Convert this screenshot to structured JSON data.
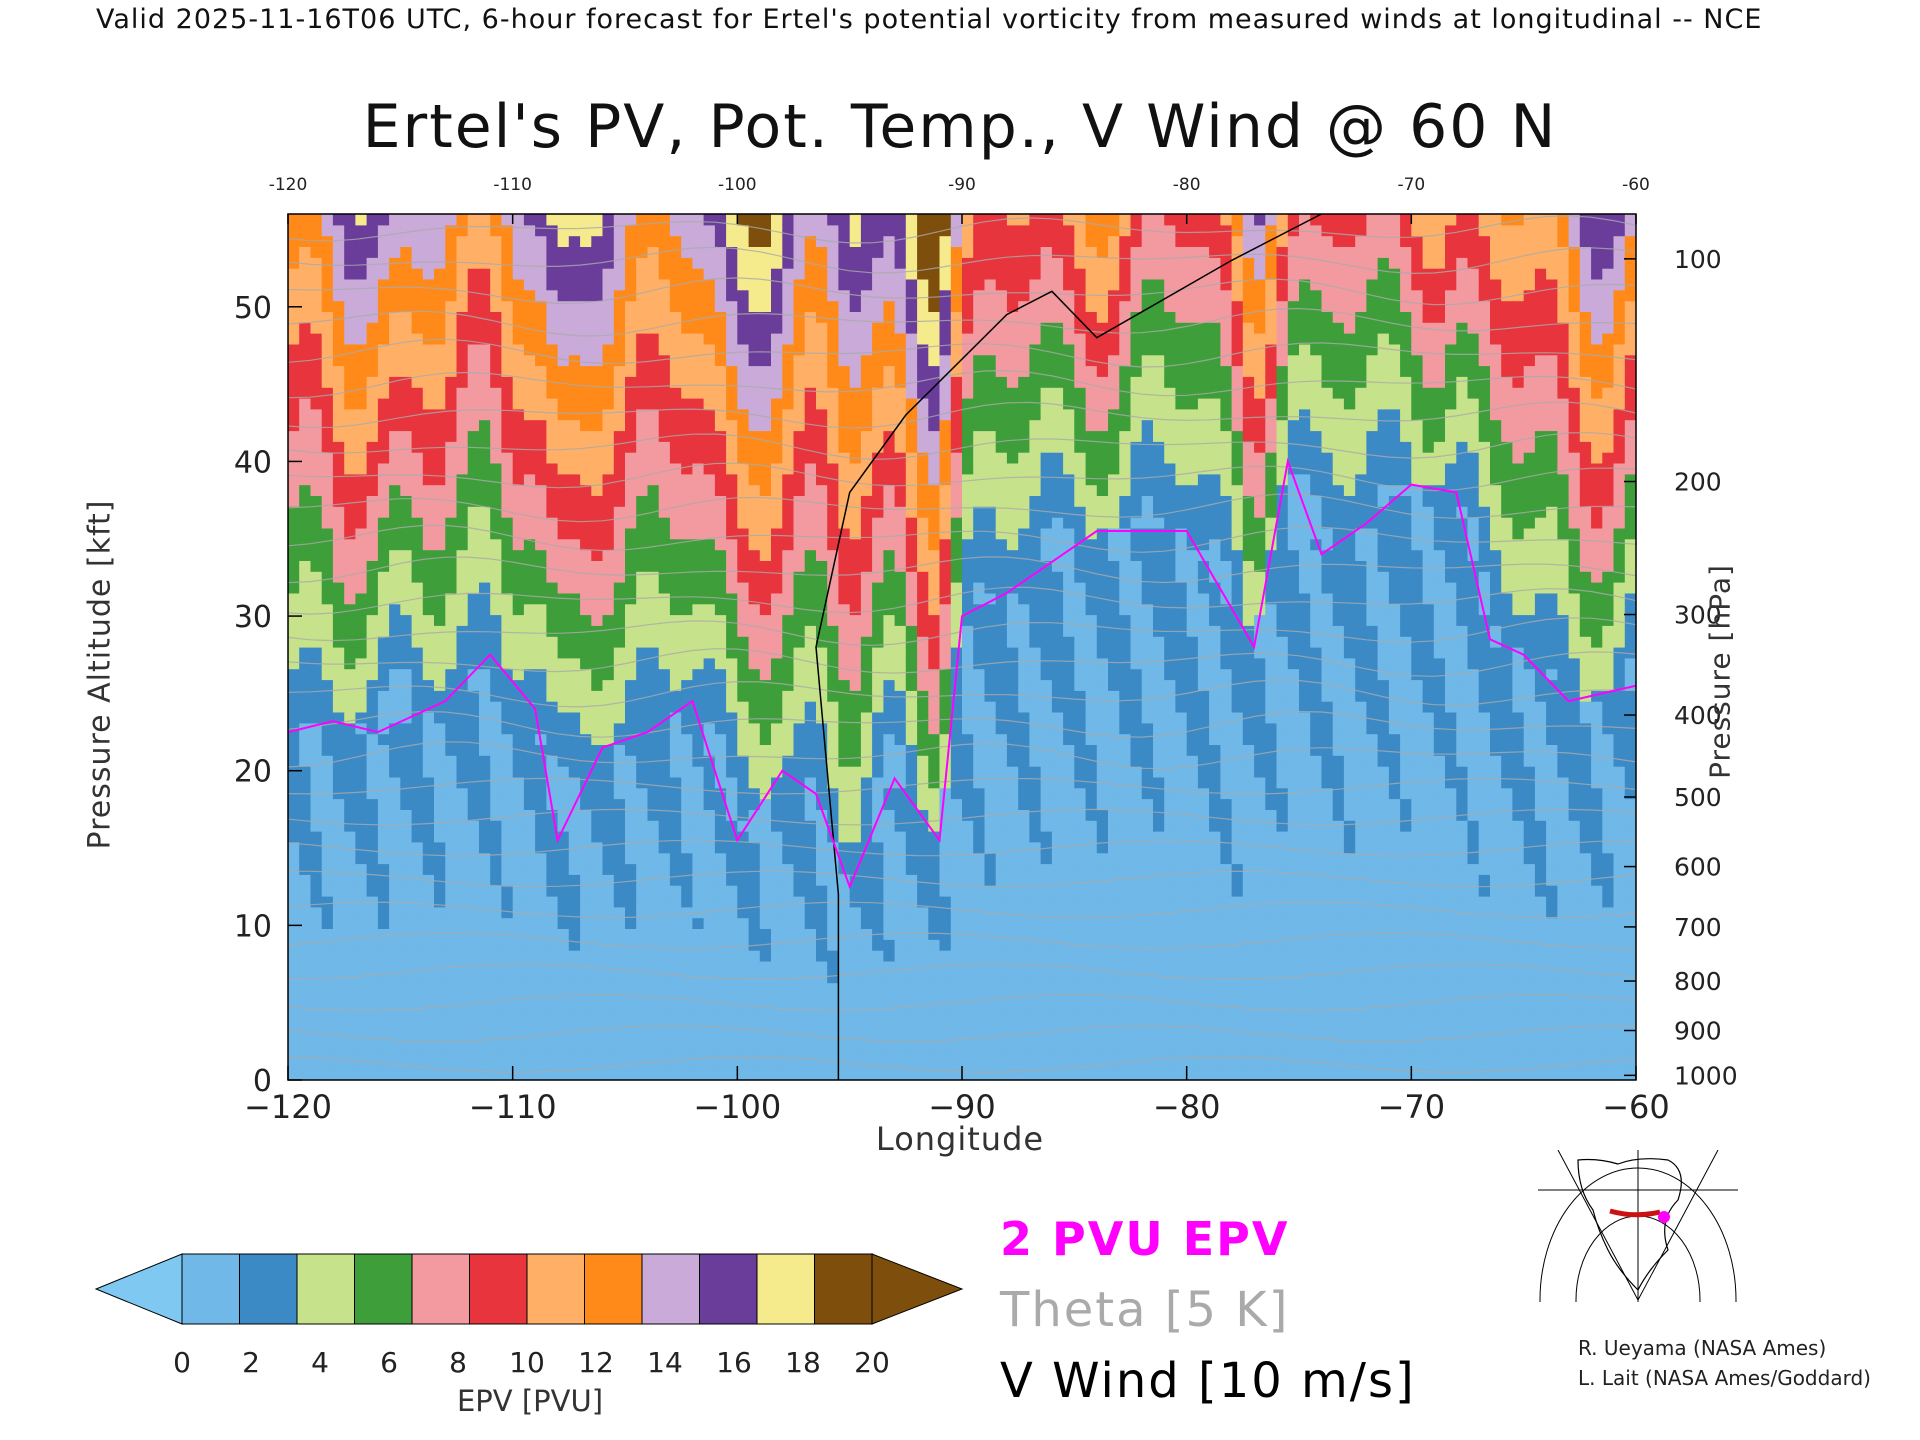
{
  "header": {
    "valid_line": "Valid 2025-11-16T06 UTC, 6-hour forecast for Ertel's potential vorticity from measured winds at longitudinal -- NCE"
  },
  "chart_data": {
    "type": "heatmap",
    "title": "Ertel's PV, Pot. Temp., V Wind @ 60 N",
    "xlabel": "Longitude",
    "ylabel": "Pressure Altitude [kft]",
    "ylabel_right": "Pressure [hPa]",
    "xlim": [
      -120,
      -60
    ],
    "ylim": [
      0,
      56
    ],
    "x_ticks": [
      -120,
      -110,
      -100,
      -90,
      -80,
      -70,
      -60
    ],
    "x_ticks_top": [
      -120,
      -110,
      -100,
      -90,
      -80,
      -70,
      -60
    ],
    "y_ticks": [
      0,
      10,
      20,
      30,
      40,
      50
    ],
    "pressure_ticks": [
      {
        "label": "100",
        "kft": 53.1
      },
      {
        "label": "200",
        "kft": 38.7
      },
      {
        "label": "300",
        "kft": 30.1
      },
      {
        "label": "400",
        "kft": 23.6
      },
      {
        "label": "500",
        "kft": 18.3
      },
      {
        "label": "600",
        "kft": 13.8
      },
      {
        "label": "700",
        "kft": 9.9
      },
      {
        "label": "800",
        "kft": 6.4
      },
      {
        "label": "900",
        "kft": 3.2
      },
      {
        "label": "1000",
        "kft": 0.3
      }
    ],
    "tropopause_2pvu_kft": [
      {
        "lon": -120,
        "kft": 22.5
      },
      {
        "lon": -118,
        "kft": 23.2
      },
      {
        "lon": -116,
        "kft": 22.5
      },
      {
        "lon": -113,
        "kft": 24.5
      },
      {
        "lon": -111,
        "kft": 27.5
      },
      {
        "lon": -109,
        "kft": 24.0
      },
      {
        "lon": -108,
        "kft": 15.5
      },
      {
        "lon": -106,
        "kft": 21.5
      },
      {
        "lon": -104,
        "kft": 22.5
      },
      {
        "lon": -102,
        "kft": 24.5
      },
      {
        "lon": -100,
        "kft": 15.5
      },
      {
        "lon": -98,
        "kft": 20.0
      },
      {
        "lon": -96.5,
        "kft": 18.5
      },
      {
        "lon": -95,
        "kft": 12.5
      },
      {
        "lon": -93,
        "kft": 19.5
      },
      {
        "lon": -91,
        "kft": 15.5
      },
      {
        "lon": -90,
        "kft": 30.0
      },
      {
        "lon": -88,
        "kft": 31.5
      },
      {
        "lon": -86,
        "kft": 33.5
      },
      {
        "lon": -84,
        "kft": 35.5
      },
      {
        "lon": -80,
        "kft": 35.5
      },
      {
        "lon": -77,
        "kft": 28.0
      },
      {
        "lon": -75.5,
        "kft": 40.0
      },
      {
        "lon": -74,
        "kft": 34.0
      },
      {
        "lon": -72,
        "kft": 36.0
      },
      {
        "lon": -70,
        "kft": 38.5
      },
      {
        "lon": -68,
        "kft": 38.0
      },
      {
        "lon": -66.5,
        "kft": 28.5
      },
      {
        "lon": -65,
        "kft": 27.5
      },
      {
        "lon": -63,
        "kft": 24.5
      },
      {
        "lon": -60,
        "kft": 25.5
      }
    ],
    "vwind_zero_contour_kft": [
      {
        "lon": -95.5,
        "kft": 0
      },
      {
        "lon": -95.5,
        "kft": 12
      },
      {
        "lon": -96.5,
        "kft": 28
      },
      {
        "lon": -95,
        "kft": 38
      },
      {
        "lon": -92.5,
        "kft": 43
      },
      {
        "lon": -88,
        "kft": 49.5
      },
      {
        "lon": -86,
        "kft": 51
      },
      {
        "lon": -84,
        "kft": 48
      },
      {
        "lon": -78,
        "kft": 53
      },
      {
        "lon": -74,
        "kft": 56
      }
    ],
    "colorbar": {
      "title": "EPV [PVU]",
      "ticks": [
        0,
        2,
        4,
        6,
        8,
        10,
        12,
        14,
        16,
        18,
        20
      ],
      "colors": [
        "#6fb8e8",
        "#3b8ac6",
        "#c6e28a",
        "#3d9e3a",
        "#f39aa0",
        "#e8343c",
        "#ffb066",
        "#ff8a1a",
        "#c9aad8",
        "#6a3d9a",
        "#f5eb8c",
        "#7e4e0c"
      ],
      "under_color": "#7ec8f2",
      "over_color": "#7e4e0c"
    },
    "legend": {
      "epv_label": "2 PVU EPV",
      "theta_label": "Theta [5 K]",
      "vwind_label": "V Wind [10 m/s]"
    }
  },
  "credits": {
    "line1": "R. Ueyama (NASA Ames)",
    "line2": "L. Lait (NASA Ames/Goddard)"
  },
  "colors": {
    "epv_contour": "#ff00ff",
    "theta_contour": "#aaaaaa",
    "wind_contour": "#000000"
  },
  "inset": {
    "highlight_color": "#cc1111",
    "marker_color": "#ff00ff"
  }
}
